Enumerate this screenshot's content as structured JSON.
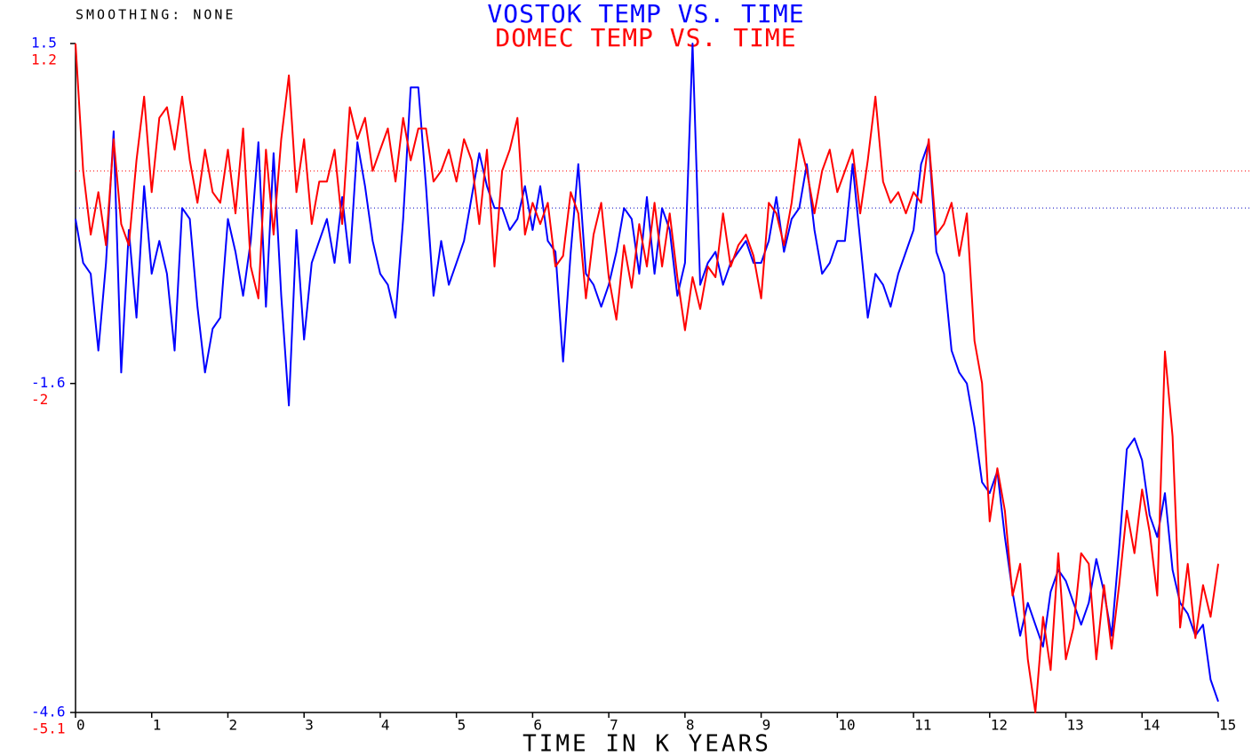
{
  "chart_data": {
    "type": "line",
    "title": "VOSTOK TEMP VS. TIME",
    "subtitle": "DOMEC TEMP VS. TIME",
    "annotation": "SMOOTHING: NONE",
    "x_label": "TIME IN K YEARS",
    "xlim": [
      0,
      15
    ],
    "xticks": [
      0,
      1,
      2,
      3,
      4,
      5,
      6,
      7,
      8,
      9,
      10,
      11,
      12,
      13,
      14,
      15
    ],
    "ylim": [
      -4.6,
      1.5
    ],
    "yticks": [
      -4.6,
      -1.6,
      1.5
    ],
    "y2lim": [
      -5.1,
      1.2
    ],
    "y2ticks": [
      -5.1,
      -2.0,
      1.2
    ],
    "hlines": [
      {
        "value": 0,
        "axis": "y",
        "color": "#0000c0"
      },
      {
        "value": 0,
        "axis": "y2",
        "color": "#ff0000"
      }
    ],
    "x": [
      0,
      0.1,
      0.2,
      0.3,
      0.4,
      0.5,
      0.6,
      0.7,
      0.8,
      0.9,
      1,
      1.1,
      1.2,
      1.3,
      1.4,
      1.5,
      1.6,
      1.7,
      1.8,
      1.9,
      2,
      2.1,
      2.2,
      2.3,
      2.4,
      2.5,
      2.6,
      2.7,
      2.8,
      2.9,
      3,
      3.1,
      3.2,
      3.3,
      3.4,
      3.5,
      3.6,
      3.7,
      3.8,
      3.9,
      4,
      4.1,
      4.2,
      4.3,
      4.4,
      4.5,
      4.6,
      4.7,
      4.8,
      4.9,
      5,
      5.1,
      5.2,
      5.3,
      5.4,
      5.5,
      5.6,
      5.7,
      5.8,
      5.9,
      6,
      6.1,
      6.2,
      6.3,
      6.4,
      6.5,
      6.6,
      6.7,
      6.8,
      6.9,
      7,
      7.1,
      7.2,
      7.3,
      7.4,
      7.5,
      7.6,
      7.7,
      7.8,
      7.9,
      8,
      8.1,
      8.2,
      8.3,
      8.4,
      8.5,
      8.6,
      8.7,
      8.8,
      8.9,
      9,
      9.1,
      9.2,
      9.3,
      9.4,
      9.5,
      9.6,
      9.7,
      9.8,
      9.9,
      10,
      10.1,
      10.2,
      10.3,
      10.4,
      10.5,
      10.6,
      10.7,
      10.8,
      10.9,
      11,
      11.1,
      11.2,
      11.3,
      11.4,
      11.5,
      11.6,
      11.7,
      11.8,
      11.9,
      12,
      12.1,
      12.2,
      12.3,
      12.4,
      12.5,
      12.6,
      12.7,
      12.8,
      12.9,
      13,
      13.1,
      13.2,
      13.3,
      13.4,
      13.5,
      13.6,
      13.7,
      13.8,
      13.9,
      14,
      14.1,
      14.2,
      14.3,
      14.4,
      14.5,
      14.6,
      14.7,
      14.8,
      14.9,
      15
    ],
    "series": [
      {
        "color": "#0000ff",
        "axis": "y",
        "values": [
          -0.1,
          -0.5,
          -0.6,
          -1.3,
          -0.5,
          0.7,
          -1.5,
          -0.2,
          -1.0,
          0.2,
          -0.6,
          -0.3,
          -0.6,
          -1.3,
          0.0,
          -0.1,
          -0.9,
          -1.5,
          -1.1,
          -1.0,
          -0.1,
          -0.4,
          -0.8,
          -0.3,
          0.6,
          -0.9,
          0.5,
          -0.8,
          -1.8,
          -0.2,
          -1.2,
          -0.5,
          -0.3,
          -0.1,
          -0.5,
          0.1,
          -0.5,
          0.6,
          0.2,
          -0.3,
          -0.6,
          -0.7,
          -1.0,
          -0.1,
          1.1,
          1.1,
          0.2,
          -0.8,
          -0.3,
          -0.7,
          -0.5,
          -0.3,
          0.1,
          0.5,
          0.2,
          0.0,
          0.0,
          -0.2,
          -0.1,
          0.2,
          -0.2,
          0.2,
          -0.3,
          -0.4,
          -1.4,
          -0.4,
          0.4,
          -0.6,
          -0.7,
          -0.9,
          -0.7,
          -0.4,
          0.0,
          -0.1,
          -0.6,
          0.1,
          -0.6,
          0.0,
          -0.2,
          -0.8,
          -0.5,
          1.5,
          -0.7,
          -0.5,
          -0.4,
          -0.7,
          -0.5,
          -0.4,
          -0.3,
          -0.5,
          -0.5,
          -0.3,
          0.1,
          -0.4,
          -0.1,
          0.0,
          0.4,
          -0.2,
          -0.6,
          -0.5,
          -0.3,
          -0.3,
          0.4,
          -0.3,
          -1.0,
          -0.6,
          -0.7,
          -0.9,
          -0.6,
          -0.4,
          -0.2,
          0.4,
          0.6,
          -0.4,
          -0.6,
          -1.3,
          -1.5,
          -1.6,
          -2.0,
          -2.5,
          -2.6,
          -2.4,
          -3.0,
          -3.5,
          -3.9,
          -3.6,
          -3.8,
          -4.0,
          -3.5,
          -3.3,
          -3.4,
          -3.6,
          -3.8,
          -3.6,
          -3.2,
          -3.5,
          -3.9,
          -3.1,
          -2.2,
          -2.1,
          -2.3,
          -2.8,
          -3.0,
          -2.6,
          -3.3,
          -3.6,
          -3.7,
          -3.9,
          -3.8,
          -4.3,
          -4.5
        ]
      },
      {
        "color": "#ff0000",
        "axis": "y2",
        "values": [
          1.2,
          0.0,
          -0.6,
          -0.2,
          -0.7,
          0.3,
          -0.5,
          -0.7,
          0.1,
          0.7,
          -0.2,
          0.5,
          0.6,
          0.2,
          0.7,
          0.1,
          -0.3,
          0.2,
          -0.2,
          -0.3,
          0.2,
          -0.4,
          0.4,
          -0.9,
          -1.2,
          0.2,
          -0.6,
          0.3,
          0.9,
          -0.2,
          0.3,
          -0.5,
          -0.1,
          -0.1,
          0.2,
          -0.5,
          0.6,
          0.3,
          0.5,
          0.0,
          0.2,
          0.4,
          -0.1,
          0.5,
          0.1,
          0.4,
          0.4,
          -0.1,
          0.0,
          0.2,
          -0.1,
          0.3,
          0.1,
          -0.5,
          0.2,
          -0.9,
          0.0,
          0.2,
          0.5,
          -0.6,
          -0.3,
          -0.5,
          -0.3,
          -0.9,
          -0.8,
          -0.2,
          -0.4,
          -1.2,
          -0.6,
          -0.3,
          -1.0,
          -1.4,
          -0.7,
          -1.1,
          -0.5,
          -0.9,
          -0.3,
          -0.9,
          -0.4,
          -1.0,
          -1.5,
          -1.0,
          -1.3,
          -0.9,
          -1.0,
          -0.4,
          -0.9,
          -0.7,
          -0.6,
          -0.8,
          -1.2,
          -0.3,
          -0.4,
          -0.7,
          -0.3,
          0.3,
          0.0,
          -0.4,
          0.0,
          0.2,
          -0.2,
          0.0,
          0.2,
          -0.4,
          0.1,
          0.7,
          -0.1,
          -0.3,
          -0.2,
          -0.4,
          -0.2,
          -0.3,
          0.3,
          -0.6,
          -0.5,
          -0.3,
          -0.8,
          -0.4,
          -1.6,
          -2.0,
          -3.3,
          -2.8,
          -3.2,
          -4.0,
          -3.7,
          -4.6,
          -5.1,
          -4.2,
          -4.7,
          -3.6,
          -4.6,
          -4.3,
          -3.6,
          -3.7,
          -4.6,
          -3.9,
          -4.5,
          -3.9,
          -3.2,
          -3.6,
          -3.0,
          -3.4,
          -4.0,
          -1.7,
          -2.5,
          -4.3,
          -3.7,
          -4.4,
          -3.9,
          -4.2,
          -3.7
        ]
      }
    ]
  }
}
